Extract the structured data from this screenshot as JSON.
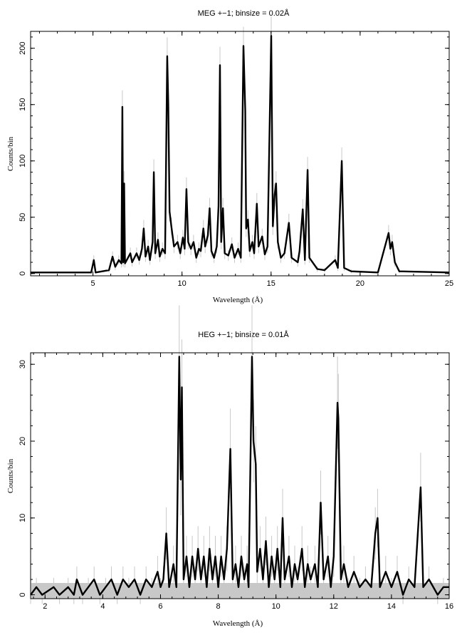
{
  "chart_data": [
    {
      "type": "line",
      "title": "MEG +−1; binsize = 0.02Å",
      "xlabel": "Wavelength (Å)",
      "ylabel": "Counts/bin",
      "xlim": [
        1.5,
        25
      ],
      "ylim": [
        -2,
        215
      ],
      "xticks": [
        5,
        10,
        15,
        20,
        25
      ],
      "yticks": [
        0,
        50,
        100,
        150,
        200
      ],
      "grid": false,
      "series": [
        {
          "values": [
            [
              1.5,
              1
            ],
            [
              4.9,
              1
            ],
            [
              5.05,
              12
            ],
            [
              5.15,
              1
            ],
            [
              5.9,
              3
            ],
            [
              6.1,
              15
            ],
            [
              6.25,
              6
            ],
            [
              6.45,
              12
            ],
            [
              6.6,
              9
            ],
            [
              6.65,
              148
            ],
            [
              6.7,
              10
            ],
            [
              6.75,
              80
            ],
            [
              6.8,
              9
            ],
            [
              7.1,
              18
            ],
            [
              7.2,
              10
            ],
            [
              7.45,
              18
            ],
            [
              7.6,
              12
            ],
            [
              7.75,
              22
            ],
            [
              7.85,
              40
            ],
            [
              7.95,
              15
            ],
            [
              8.1,
              24
            ],
            [
              8.2,
              12
            ],
            [
              8.35,
              28
            ],
            [
              8.42,
              90
            ],
            [
              8.5,
              18
            ],
            [
              8.65,
              30
            ],
            [
              8.75,
              15
            ],
            [
              8.9,
              22
            ],
            [
              9.05,
              18
            ],
            [
              9.17,
              193
            ],
            [
              9.23,
              150
            ],
            [
              9.3,
              55
            ],
            [
              9.4,
              42
            ],
            [
              9.55,
              24
            ],
            [
              9.75,
              28
            ],
            [
              9.9,
              18
            ],
            [
              10.05,
              32
            ],
            [
              10.15,
              22
            ],
            [
              10.25,
              75
            ],
            [
              10.35,
              28
            ],
            [
              10.5,
              22
            ],
            [
              10.65,
              28
            ],
            [
              10.8,
              14
            ],
            [
              10.95,
              22
            ],
            [
              11.05,
              20
            ],
            [
              11.2,
              40
            ],
            [
              11.3,
              24
            ],
            [
              11.45,
              34
            ],
            [
              11.55,
              58
            ],
            [
              11.65,
              20
            ],
            [
              11.8,
              14
            ],
            [
              11.95,
              24
            ],
            [
              12.05,
              60
            ],
            [
              12.13,
              185
            ],
            [
              12.2,
              28
            ],
            [
              12.3,
              58
            ],
            [
              12.4,
              18
            ],
            [
              12.6,
              16
            ],
            [
              12.8,
              26
            ],
            [
              12.95,
              14
            ],
            [
              13.15,
              22
            ],
            [
              13.3,
              14
            ],
            [
              13.45,
              202
            ],
            [
              13.55,
              145
            ],
            [
              13.6,
              40
            ],
            [
              13.7,
              48
            ],
            [
              13.8,
              20
            ],
            [
              13.95,
              28
            ],
            [
              14.05,
              18
            ],
            [
              14.2,
              62
            ],
            [
              14.3,
              24
            ],
            [
              14.5,
              33
            ],
            [
              14.65,
              17
            ],
            [
              14.8,
              24
            ],
            [
              15.01,
              211
            ],
            [
              15.1,
              42
            ],
            [
              15.2,
              70
            ],
            [
              15.28,
              80
            ],
            [
              15.38,
              28
            ],
            [
              15.55,
              14
            ],
            [
              15.75,
              18
            ],
            [
              16.0,
              45
            ],
            [
              16.15,
              14
            ],
            [
              16.5,
              10
            ],
            [
              16.6,
              20
            ],
            [
              16.78,
              57
            ],
            [
              16.9,
              12
            ],
            [
              17.05,
              92
            ],
            [
              17.15,
              14
            ],
            [
              17.6,
              4
            ],
            [
              18.0,
              3
            ],
            [
              18.6,
              12
            ],
            [
              18.75,
              5
            ],
            [
              18.97,
              100
            ],
            [
              19.1,
              5
            ],
            [
              19.5,
              2
            ],
            [
              21.0,
              1
            ],
            [
              21.6,
              36
            ],
            [
              21.7,
              22
            ],
            [
              21.8,
              28
            ],
            [
              21.95,
              10
            ],
            [
              22.2,
              2
            ],
            [
              25,
              1
            ]
          ]
        }
      ]
    },
    {
      "type": "line",
      "title": "HEG +−1; binsize = 0.01Å",
      "xlabel": "Wavelength (Å)",
      "ylabel": "Counts/bin",
      "xlim": [
        1.5,
        16
      ],
      "ylim": [
        -0.5,
        31.5
      ],
      "xticks": [
        2,
        4,
        6,
        8,
        10,
        12,
        14,
        16
      ],
      "yticks": [
        0,
        10,
        20,
        30
      ],
      "grid": false,
      "series": [
        {
          "values": [
            [
              1.5,
              0
            ],
            [
              1.7,
              1
            ],
            [
              1.9,
              0
            ],
            [
              2.3,
              1
            ],
            [
              2.5,
              0
            ],
            [
              2.8,
              1
            ],
            [
              3.0,
              0
            ],
            [
              3.1,
              2
            ],
            [
              3.3,
              0
            ],
            [
              3.5,
              1
            ],
            [
              3.7,
              2
            ],
            [
              3.9,
              0
            ],
            [
              4.1,
              1
            ],
            [
              4.3,
              2
            ],
            [
              4.5,
              0
            ],
            [
              4.7,
              2
            ],
            [
              4.9,
              1
            ],
            [
              5.1,
              2
            ],
            [
              5.3,
              0
            ],
            [
              5.5,
              2
            ],
            [
              5.7,
              1
            ],
            [
              5.9,
              3
            ],
            [
              6.0,
              1
            ],
            [
              6.1,
              2
            ],
            [
              6.2,
              8
            ],
            [
              6.3,
              1
            ],
            [
              6.45,
              4
            ],
            [
              6.55,
              1
            ],
            [
              6.65,
              31
            ],
            [
              6.7,
              15
            ],
            [
              6.74,
              27
            ],
            [
              6.8,
              2
            ],
            [
              6.9,
              5
            ],
            [
              7.0,
              1
            ],
            [
              7.1,
              5
            ],
            [
              7.2,
              2
            ],
            [
              7.3,
              6
            ],
            [
              7.4,
              2
            ],
            [
              7.5,
              5
            ],
            [
              7.6,
              1
            ],
            [
              7.7,
              6
            ],
            [
              7.8,
              2
            ],
            [
              7.9,
              5
            ],
            [
              8.0,
              1
            ],
            [
              8.1,
              5
            ],
            [
              8.2,
              2
            ],
            [
              8.3,
              6
            ],
            [
              8.42,
              19
            ],
            [
              8.5,
              2
            ],
            [
              8.6,
              4
            ],
            [
              8.7,
              1
            ],
            [
              8.8,
              5
            ],
            [
              8.9,
              2
            ],
            [
              9.0,
              4
            ],
            [
              9.05,
              1
            ],
            [
              9.17,
              31
            ],
            [
              9.22,
              20
            ],
            [
              9.3,
              17
            ],
            [
              9.35,
              3
            ],
            [
              9.45,
              6
            ],
            [
              9.55,
              2
            ],
            [
              9.65,
              7
            ],
            [
              9.75,
              1
            ],
            [
              9.85,
              5
            ],
            [
              9.95,
              2
            ],
            [
              10.05,
              6
            ],
            [
              10.15,
              1
            ],
            [
              10.23,
              10
            ],
            [
              10.3,
              2
            ],
            [
              10.45,
              5
            ],
            [
              10.55,
              1
            ],
            [
              10.65,
              4
            ],
            [
              10.75,
              2
            ],
            [
              10.9,
              6
            ],
            [
              11.0,
              1
            ],
            [
              11.1,
              4
            ],
            [
              11.2,
              2
            ],
            [
              11.35,
              4
            ],
            [
              11.45,
              1
            ],
            [
              11.55,
              12
            ],
            [
              11.65,
              2
            ],
            [
              11.8,
              5
            ],
            [
              11.9,
              1
            ],
            [
              12.0,
              5
            ],
            [
              12.13,
              25
            ],
            [
              12.16,
              23
            ],
            [
              12.25,
              2
            ],
            [
              12.35,
              4
            ],
            [
              12.5,
              1
            ],
            [
              12.7,
              3
            ],
            [
              12.9,
              1
            ],
            [
              13.1,
              2
            ],
            [
              13.3,
              1
            ],
            [
              13.44,
              8
            ],
            [
              13.52,
              10
            ],
            [
              13.6,
              1
            ],
            [
              13.8,
              3
            ],
            [
              14.0,
              1
            ],
            [
              14.2,
              3
            ],
            [
              14.4,
              0
            ],
            [
              14.6,
              2
            ],
            [
              14.8,
              1
            ],
            [
              15.01,
              14
            ],
            [
              15.1,
              1
            ],
            [
              15.3,
              2
            ],
            [
              15.6,
              0
            ],
            [
              15.8,
              1
            ],
            [
              16,
              1
            ]
          ]
        }
      ]
    }
  ]
}
